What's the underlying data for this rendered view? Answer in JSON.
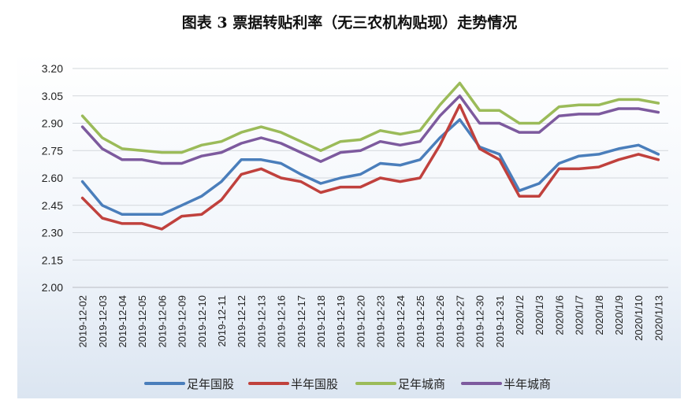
{
  "chart_data": {
    "type": "line",
    "title": "图表 3  票据转贴利率（无三农机构贴现）走势情况",
    "xlabel": "",
    "ylabel": "",
    "ylim": [
      2.0,
      3.2
    ],
    "yticks": [
      "2.00",
      "2.15",
      "2.30",
      "2.45",
      "2.60",
      "2.75",
      "2.90",
      "3.05",
      "3.20"
    ],
    "grid": true,
    "legend_position": "bottom",
    "categories": [
      "2019-12-02",
      "2019-12-03",
      "2019-12-04",
      "2019-12-05",
      "2019-12-06",
      "2019-12-09",
      "2019-12-10",
      "2019-12-11",
      "2019-12-12",
      "2019-12-13",
      "2019-12-16",
      "2019-12-17",
      "2019-12-18",
      "2019-12-19",
      "2019-12-20",
      "2019-12-23",
      "2019-12-24",
      "2019-12-25",
      "2019-12-26",
      "2019-12-27",
      "2019-12-30",
      "2019-12-31",
      "2020/1/2",
      "2020/1/3",
      "2020/1/6",
      "2020/1/7",
      "2020/1/8",
      "2020/1/9",
      "2020/1/10",
      "2020/1/13"
    ],
    "series": [
      {
        "name": "足年国股",
        "color": "#4a7ebb",
        "values": [
          2.58,
          2.45,
          2.4,
          2.4,
          2.4,
          2.45,
          2.5,
          2.58,
          2.7,
          2.7,
          2.68,
          2.62,
          2.57,
          2.6,
          2.62,
          2.68,
          2.67,
          2.7,
          2.82,
          2.92,
          2.77,
          2.73,
          2.53,
          2.57,
          2.68,
          2.72,
          2.73,
          2.76,
          2.78,
          2.73
        ]
      },
      {
        "name": "半年国股",
        "color": "#c0413d",
        "values": [
          2.49,
          2.38,
          2.35,
          2.35,
          2.32,
          2.39,
          2.4,
          2.48,
          2.62,
          2.65,
          2.6,
          2.58,
          2.52,
          2.55,
          2.55,
          2.6,
          2.58,
          2.6,
          2.78,
          3.0,
          2.76,
          2.7,
          2.5,
          2.5,
          2.65,
          2.65,
          2.66,
          2.7,
          2.73,
          2.7
        ]
      },
      {
        "name": "足年城商",
        "color": "#9bbb59",
        "values": [
          2.94,
          2.82,
          2.76,
          2.75,
          2.74,
          2.74,
          2.78,
          2.8,
          2.85,
          2.88,
          2.85,
          2.8,
          2.75,
          2.8,
          2.81,
          2.86,
          2.84,
          2.86,
          3.0,
          3.12,
          2.97,
          2.97,
          2.9,
          2.9,
          2.99,
          3.0,
          3.0,
          3.03,
          3.03,
          3.01
        ]
      },
      {
        "name": "半年城商",
        "color": "#7d5a9e",
        "values": [
          2.88,
          2.76,
          2.7,
          2.7,
          2.68,
          2.68,
          2.72,
          2.74,
          2.79,
          2.82,
          2.79,
          2.74,
          2.69,
          2.74,
          2.75,
          2.8,
          2.78,
          2.8,
          2.94,
          3.05,
          2.9,
          2.9,
          2.85,
          2.85,
          2.94,
          2.95,
          2.95,
          2.98,
          2.98,
          2.96
        ]
      }
    ]
  }
}
